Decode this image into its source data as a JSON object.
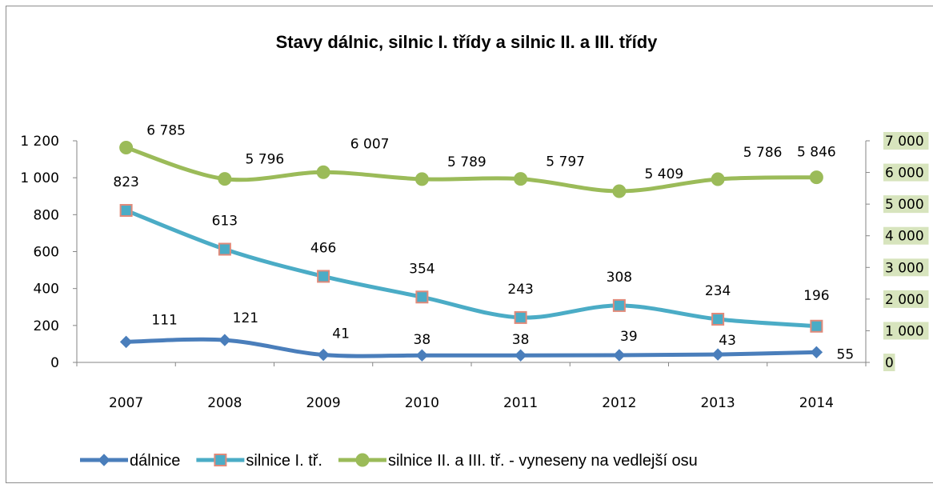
{
  "chart_data": {
    "type": "line",
    "title": "Stavy dálnic, silnic I. třídy a silnic II. a III. třídy",
    "categories": [
      "2007",
      "2008",
      "2009",
      "2010",
      "2011",
      "2012",
      "2013",
      "2014"
    ],
    "y_left": {
      "min": 0,
      "max": 1200,
      "ticks": [
        "0",
        "200",
        "400",
        "600",
        "800",
        "1 000",
        "1 200"
      ]
    },
    "y_right": {
      "min": 0,
      "max": 7000,
      "ticks": [
        "0",
        "1 000",
        "2 000",
        "3 000",
        "4 000",
        "5 000",
        "6 000",
        "7 000"
      ],
      "tick_bg": "#d7e4bd"
    },
    "series": [
      {
        "name": "dálnice",
        "axis": "left",
        "values": [
          111,
          121,
          41,
          38,
          38,
          39,
          43,
          55
        ],
        "labels": [
          "111",
          "121",
          "41",
          "38",
          "38",
          "39",
          "43",
          "55"
        ],
        "color": "#4a7ebb",
        "marker": "diamond"
      },
      {
        "name": "silnice I. tř.",
        "axis": "left",
        "values": [
          823,
          613,
          466,
          354,
          243,
          308,
          234,
          196
        ],
        "labels": [
          "823",
          "613",
          "466",
          "354",
          "243",
          "308",
          "234",
          "196"
        ],
        "color": "#4bacc6",
        "marker": "square",
        "marker_edge": "#e08a7a"
      },
      {
        "name": "silnice II. a III. tř. - vyneseny na vedlejší osu",
        "axis": "right",
        "values": [
          6785,
          5796,
          6007,
          5789,
          5797,
          5409,
          5786,
          5846
        ],
        "labels": [
          "6 785",
          "5 796",
          "6 007",
          "5 789",
          "5 797",
          "5 409",
          "5 786",
          "5 846"
        ],
        "color": "#9bbb59",
        "marker": "circle"
      }
    ],
    "legend": "bottom",
    "grid": false
  }
}
